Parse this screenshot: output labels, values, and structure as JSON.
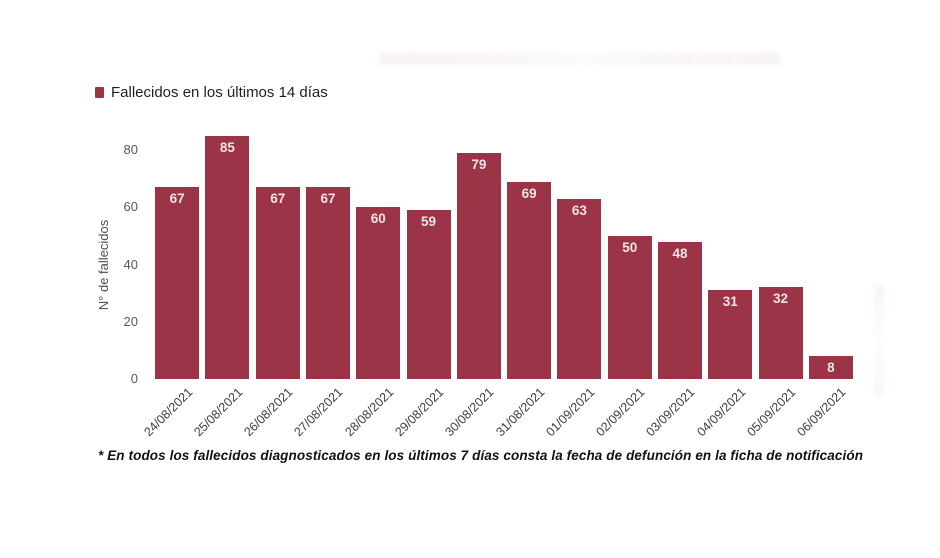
{
  "colors": {
    "bar": "#9c3447",
    "bar_label": "#f5e4e7",
    "legend_text": "#1f1f1f"
  },
  "legend": {
    "label": "Fallecidos en los últimos 14 días"
  },
  "y_axis": {
    "title": "N° de fallecidos",
    "ticks": [
      0,
      20,
      40,
      60,
      80
    ]
  },
  "footnote": "* En todos los fallecidos diagnosticados en los últimos 7 días consta la fecha de defunción en la ficha de notificación",
  "chart_data": {
    "type": "bar",
    "title": "",
    "categories": [
      "24/08/2021",
      "25/08/2021",
      "26/08/2021",
      "27/08/2021",
      "28/08/2021",
      "29/08/2021",
      "30/08/2021",
      "31/08/2021",
      "01/09/2021",
      "02/09/2021",
      "03/09/2021",
      "04/09/2021",
      "05/09/2021",
      "06/09/2021"
    ],
    "values": [
      67,
      85,
      67,
      67,
      60,
      59,
      79,
      69,
      63,
      50,
      48,
      31,
      32,
      8
    ],
    "series_name": "Fallecidos en los últimos 14 días",
    "xlabel": "",
    "ylabel": "N° de fallecidos",
    "ylim": [
      0,
      85
    ],
    "grid": false,
    "legend_position": "top-left",
    "bar_value_labels": "inside-top",
    "x_tick_rotation": -45
  }
}
